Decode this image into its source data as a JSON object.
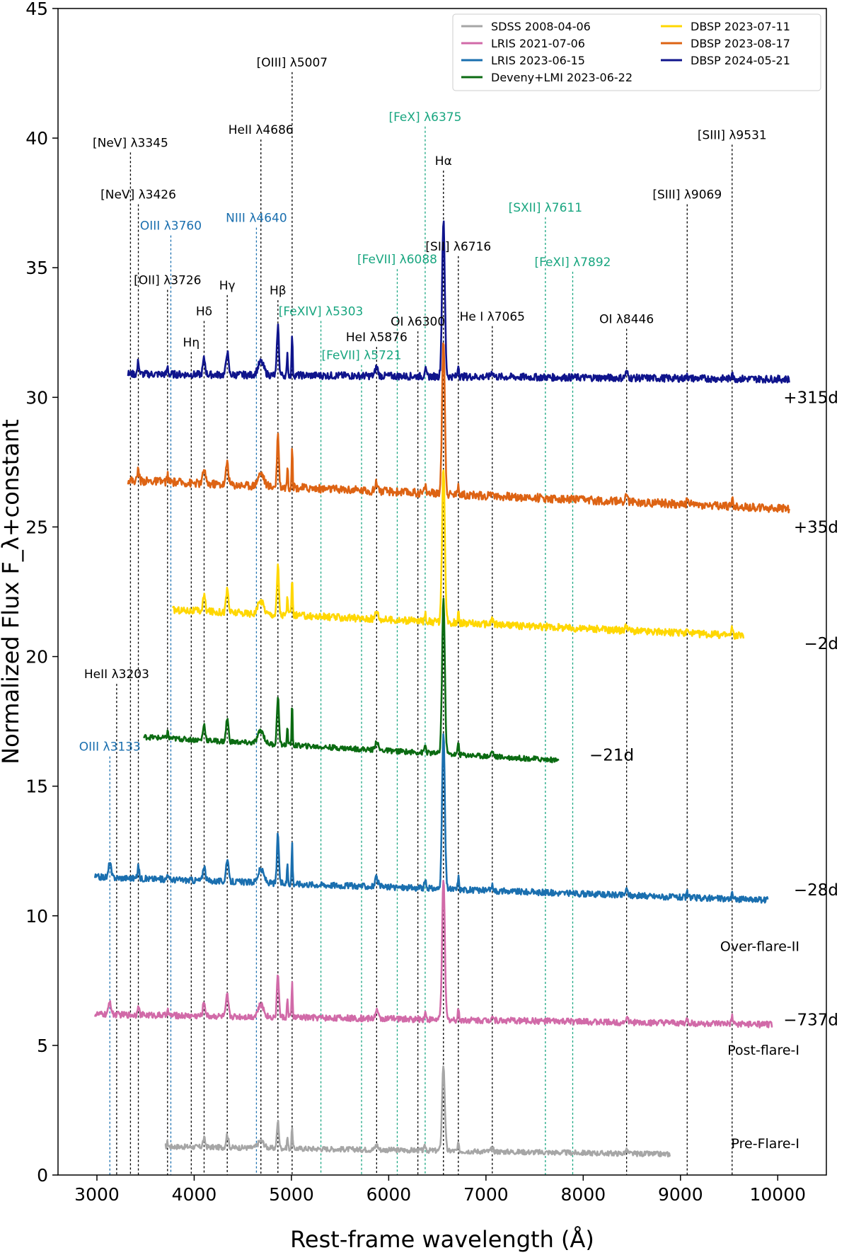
{
  "chart_data": {
    "type": "line",
    "xlabel": "Rest-frame wavelength (Å)",
    "ylabel": "Normalized Flux F_λ+constant",
    "xlim": [
      2600,
      10500
    ],
    "ylim": [
      0,
      45
    ],
    "xticks": [
      3000,
      4000,
      5000,
      6000,
      7000,
      8000,
      9000,
      10000
    ],
    "yticks": [
      0,
      5,
      10,
      15,
      20,
      25,
      30,
      35,
      40,
      45
    ],
    "grid": false,
    "legend_position": "top-right",
    "series": [
      {
        "name": "SDSS 2008-04-06",
        "color": "#a6a6a6",
        "range": [
          3700,
          8900
        ],
        "base": 1.1,
        "tilt": -0.3,
        "scale": 0.55,
        "noise": 0.1,
        "epoch": "",
        "phase": "Pre-Flare-I"
      },
      {
        "name": "LRIS 2021-07-06",
        "color": "#d16aa8",
        "range": [
          2980,
          9950
        ],
        "base": 6.2,
        "tilt": -0.4,
        "scale": 0.9,
        "noise": 0.12,
        "epoch": "−737d",
        "phase": "Post-flare-I"
      },
      {
        "name": "LRIS 2023-06-15",
        "color": "#1a6faf",
        "range": [
          2980,
          9900
        ],
        "base": 11.5,
        "tilt": -0.9,
        "scale": 1.0,
        "noise": 0.12,
        "epoch": "−28d",
        "phase": "Over-flare-II"
      },
      {
        "name": "Deveny+LMI 2023-06-22",
        "color": "#0b6b12",
        "range": [
          3480,
          7750
        ],
        "base": 16.9,
        "tilt": -0.9,
        "scale": 1.0,
        "noise": 0.1,
        "epoch": "−21d",
        "phase": ""
      },
      {
        "name": "DBSP 2023-07-11",
        "color": "#ffd700",
        "range": [
          3780,
          9650
        ],
        "base": 21.8,
        "tilt": -1.0,
        "scale": 1.0,
        "noise": 0.14,
        "epoch": "−2d",
        "phase": ""
      },
      {
        "name": "DBSP 2023-08-17",
        "color": "#dd6313",
        "range": [
          3320,
          10120
        ],
        "base": 26.8,
        "tilt": -1.1,
        "scale": 1.0,
        "noise": 0.16,
        "epoch": "+35d",
        "phase": ""
      },
      {
        "name": "DBSP 2024-05-21",
        "color": "#0f148c",
        "range": [
          3320,
          10120
        ],
        "base": 30.9,
        "tilt": -0.2,
        "scale": 1.0,
        "noise": 0.14,
        "epoch": "+315d",
        "phase": ""
      }
    ],
    "emission_lines": [
      {
        "label": "HeII λ3203",
        "wavelength": 3203,
        "top": 19.0,
        "kind": "black"
      },
      {
        "label": "OIII λ3133",
        "wavelength": 3133,
        "top": 16.2,
        "kind": "blue"
      },
      {
        "label": "[NeV] λ3345",
        "wavelength": 3345,
        "top": 39.5,
        "kind": "black"
      },
      {
        "label": "[NeV] λ3426",
        "wavelength": 3426,
        "top": 37.5,
        "kind": "black"
      },
      {
        "label": "OIII λ3760",
        "wavelength": 3760,
        "top": 36.3,
        "kind": "blue"
      },
      {
        "label": "[OII] λ3726",
        "wavelength": 3726,
        "top": 34.2,
        "kind": "black"
      },
      {
        "label": "Hη",
        "wavelength": 3970,
        "top": 31.8,
        "kind": "black"
      },
      {
        "label": "Hδ",
        "wavelength": 4102,
        "top": 33.0,
        "kind": "black"
      },
      {
        "label": "Hγ",
        "wavelength": 4340,
        "top": 34.0,
        "kind": "black"
      },
      {
        "label": "NIII λ4640",
        "wavelength": 4640,
        "top": 36.6,
        "kind": "blue"
      },
      {
        "label": "HeII λ4686",
        "wavelength": 4686,
        "top": 40.0,
        "kind": "black"
      },
      {
        "label": "Hβ",
        "wavelength": 4861,
        "top": 33.8,
        "kind": "black"
      },
      {
        "label": "[OIII] λ5007",
        "wavelength": 5007,
        "top": 42.6,
        "kind": "black"
      },
      {
        "label": "[FeXIV] λ5303",
        "wavelength": 5303,
        "top": 33.0,
        "kind": "green"
      },
      {
        "label": "[FeVII] λ5721",
        "wavelength": 5721,
        "top": 31.3,
        "kind": "green"
      },
      {
        "label": "HeI λ5876",
        "wavelength": 5876,
        "top": 32.0,
        "kind": "black"
      },
      {
        "label": "[FeVII] λ6088",
        "wavelength": 6088,
        "top": 35.0,
        "kind": "green"
      },
      {
        "label": "OI λ6300",
        "wavelength": 6300,
        "top": 32.6,
        "kind": "black"
      },
      {
        "label": "[FeX] λ6375",
        "wavelength": 6375,
        "top": 40.5,
        "kind": "green"
      },
      {
        "label": "Hα",
        "wavelength": 6563,
        "top": 38.8,
        "kind": "black"
      },
      {
        "label": "[SII] λ6716",
        "wavelength": 6716,
        "top": 35.5,
        "kind": "black"
      },
      {
        "label": "He I λ7065",
        "wavelength": 7065,
        "top": 32.8,
        "kind": "black"
      },
      {
        "label": "[SXII] λ7611",
        "wavelength": 7611,
        "top": 37.0,
        "kind": "green"
      },
      {
        "label": "[FeXI] λ7892",
        "wavelength": 7892,
        "top": 34.9,
        "kind": "green"
      },
      {
        "label": "OI λ8446",
        "wavelength": 8446,
        "top": 32.7,
        "kind": "black"
      },
      {
        "label": "[SIII] λ9069",
        "wavelength": 9069,
        "top": 37.5,
        "kind": "black"
      },
      {
        "label": "[SIII] λ9531",
        "wavelength": 9531,
        "top": 39.8,
        "kind": "black"
      }
    ],
    "line_colors": {
      "black": "#000000",
      "blue": "#1a6faf",
      "green": "#19a680"
    }
  }
}
